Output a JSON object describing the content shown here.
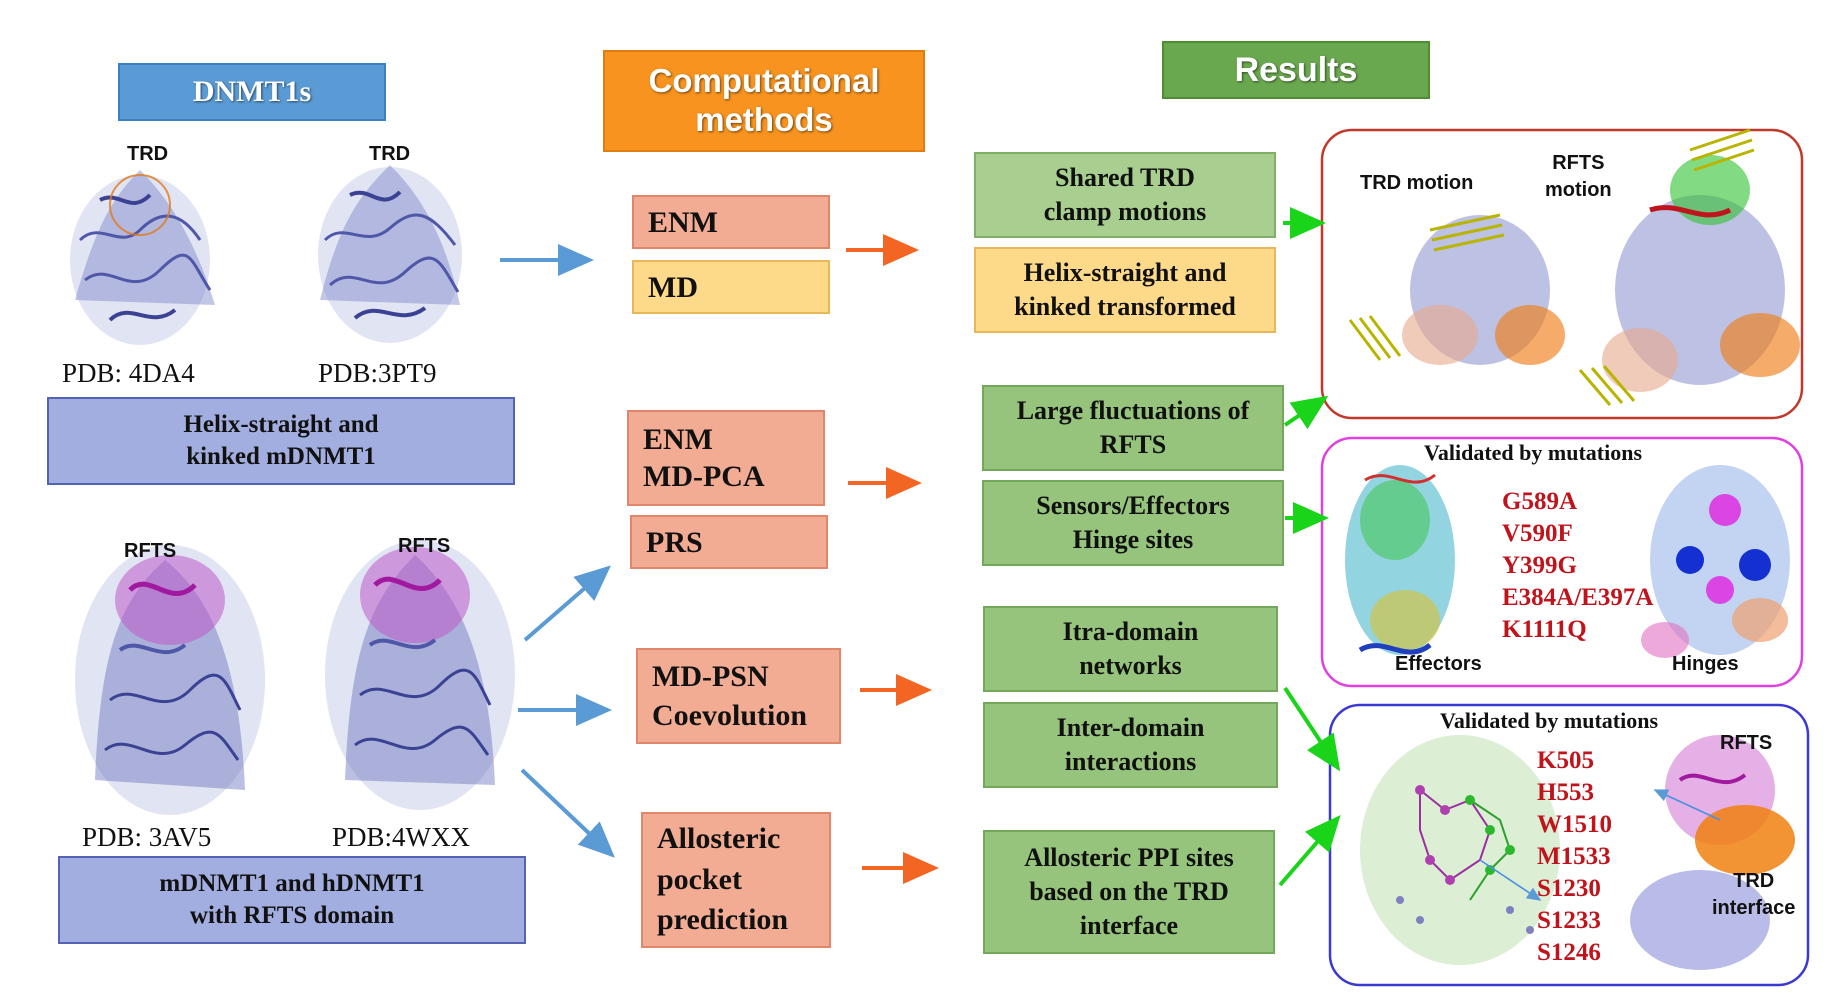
{
  "headers": {
    "dnmt1s": "DNMT1s",
    "computational": [
      "Computational",
      "methods"
    ],
    "results": "Results"
  },
  "structures": {
    "top_left": {
      "label": "TRD",
      "pdb": "PDB: 4DA4"
    },
    "top_right": {
      "label": "TRD",
      "pdb": "PDB:3PT9"
    },
    "bottom_left": {
      "label": "RFTS",
      "pdb": "PDB: 3AV5"
    },
    "bottom_right": {
      "label": "RFTS",
      "pdb": "PDB:4WXX"
    }
  },
  "left_boxes": {
    "helix": [
      "Helix-straight and",
      "kinked mDNMT1"
    ],
    "rfts": [
      "mDNMT1 and hDNMT1",
      "with RFTS domain"
    ]
  },
  "methods": {
    "enm": "ENM",
    "md": "MD",
    "enm_mdpca": [
      "ENM",
      "MD-PCA"
    ],
    "prs": "PRS",
    "mdpsn": [
      "MD-PSN",
      "Coevolution"
    ],
    "allosteric": [
      "Allosteric",
      "pocket",
      "prediction"
    ]
  },
  "results": {
    "shared_trd": [
      "Shared TRD",
      "clamp motions"
    ],
    "helix_transformed": [
      "Helix-straight and",
      "kinked transformed"
    ],
    "large_fluct": [
      "Large fluctuations of",
      "RFTS"
    ],
    "sensors": [
      "Sensors/Effectors",
      "Hinge sites"
    ],
    "itra": [
      "Itra-domain",
      "networks"
    ],
    "inter": [
      "Inter-domain",
      "interactions"
    ],
    "ppi": [
      "Allosteric PPI sites",
      "based on the TRD",
      "interface"
    ]
  },
  "panels": {
    "motion": {
      "trd_motion": "TRD motion",
      "rfts_motion": [
        "RFTS",
        "motion"
      ]
    },
    "mutation1": {
      "title": "Validated by mutations",
      "mutations": [
        "G589A",
        "V590F",
        "Y399G",
        "E384A/E397A",
        "K1111Q"
      ],
      "effectors": "Effectors",
      "hinges": "Hinges"
    },
    "mutation2": {
      "title": "Validated by mutations",
      "mutations": [
        "K505",
        "H553",
        "W1510",
        "M1533",
        "S1230",
        "S1233",
        "S1246"
      ],
      "rfts": "RFTS",
      "trd_interface": [
        "TRD",
        "interface"
      ]
    }
  },
  "colors": {
    "blue_header": "#5b9bd5",
    "orange_header": "#f7931e",
    "green_header": "#6aa84f",
    "arrow_blue": "#5b9bd5",
    "arrow_orange": "#f26522",
    "arrow_green": "#19d419",
    "panel_red": "#c0392b",
    "panel_magenta": "#e040e0",
    "panel_blue": "#3a3ad0",
    "mutation_red": "#c0141c"
  }
}
